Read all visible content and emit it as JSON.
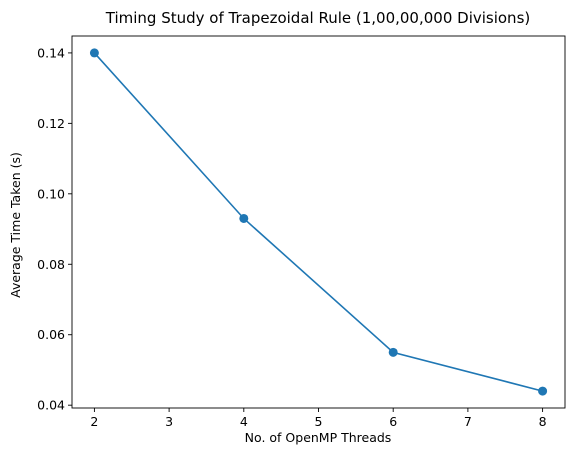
{
  "chart_data": {
    "type": "line",
    "title": "Timing Study of Trapezoidal Rule (1,00,00,000 Divisions)",
    "xlabel": "No. of OpenMP Threads",
    "ylabel": "Average Time Taken (s)",
    "x": [
      2,
      4,
      6,
      8
    ],
    "series": [
      {
        "values": [
          0.14,
          0.093,
          0.055,
          0.044
        ],
        "color": "#1f77b4",
        "marker": "circle"
      }
    ],
    "xlim": [
      1.7,
      8.3
    ],
    "ylim": [
      0.0392,
      0.1448
    ],
    "xticks": [
      2,
      3,
      4,
      5,
      6,
      7,
      8
    ],
    "yticks": [
      0.04,
      0.06,
      0.08,
      0.1,
      0.12,
      0.14
    ],
    "ytick_labels": [
      "0.04",
      "0.06",
      "0.08",
      "0.10",
      "0.12",
      "0.14"
    ],
    "grid": false,
    "legend": "none"
  }
}
